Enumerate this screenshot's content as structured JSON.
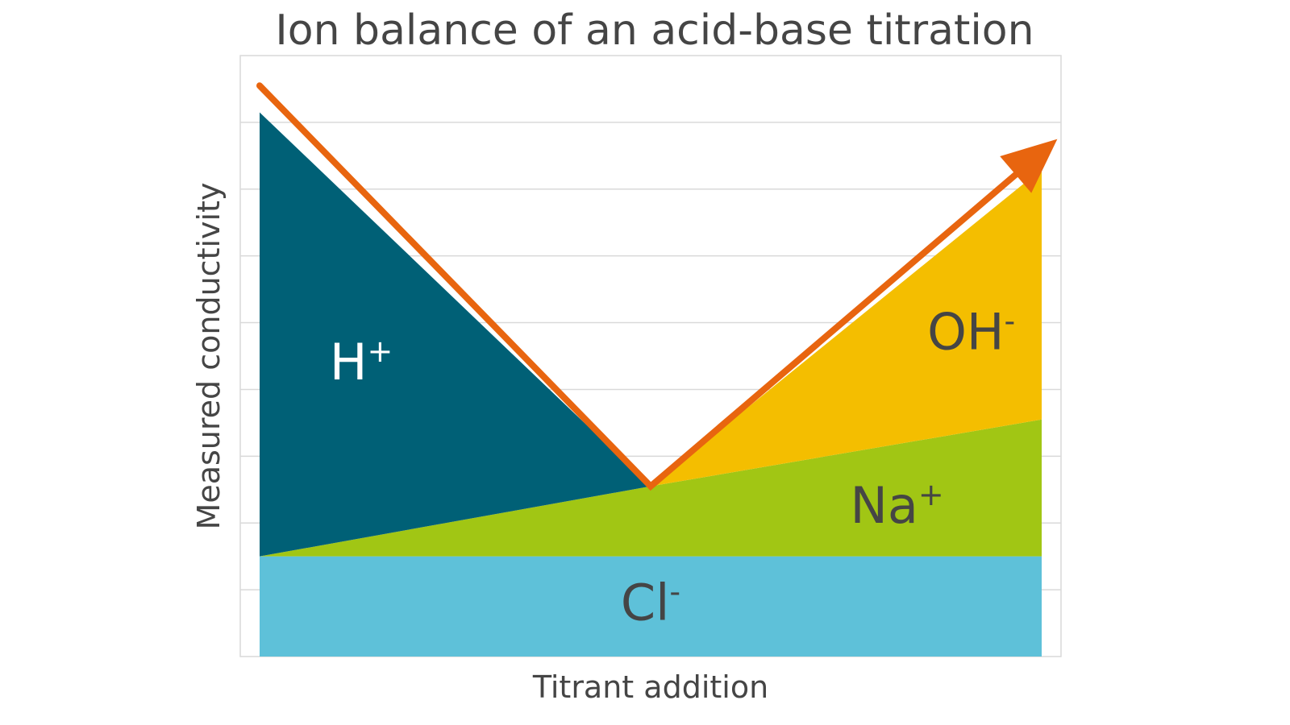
{
  "chart_data": {
    "type": "area",
    "title": "Ion balance of an acid-base titration",
    "xlabel": "Titrant addition",
    "ylabel": "Measured conductivity",
    "xlim": [
      0,
      1
    ],
    "ylim": [
      0,
      9
    ],
    "grid": true,
    "y_gridlines": [
      1,
      2,
      3,
      4,
      5,
      6,
      7,
      8
    ],
    "regions": [
      {
        "name": "Cl",
        "charge": "-",
        "color": "#5EC1D9",
        "label_color": "#454545",
        "x": [
          0,
          1
        ],
        "lower": [
          0,
          0
        ],
        "upper": [
          1.5,
          1.5
        ]
      },
      {
        "name": "Na",
        "charge": "+",
        "color": "#A1C614",
        "label_color": "#454545",
        "x": [
          0,
          0.5,
          1
        ],
        "lower": [
          1.5,
          1.5,
          1.5
        ],
        "upper": [
          1.5,
          2.55,
          3.55
        ]
      },
      {
        "name": "H",
        "charge": "+",
        "color": "#006076",
        "label_color": "#ffffff",
        "x": [
          0,
          0.5
        ],
        "lower": [
          1.5,
          2.55
        ],
        "upper": [
          8.15,
          2.55
        ]
      },
      {
        "name": "OH",
        "charge": "-",
        "color": "#F4BE00",
        "label_color": "#454545",
        "x": [
          0.5,
          1
        ],
        "lower": [
          2.55,
          3.55
        ],
        "upper": [
          2.55,
          7.3
        ]
      }
    ],
    "conductivity_line": {
      "color": "#E8650F",
      "x": [
        0,
        0.5,
        1.02
      ],
      "y": [
        8.55,
        2.55,
        7.75
      ],
      "arrow_end": true
    }
  }
}
